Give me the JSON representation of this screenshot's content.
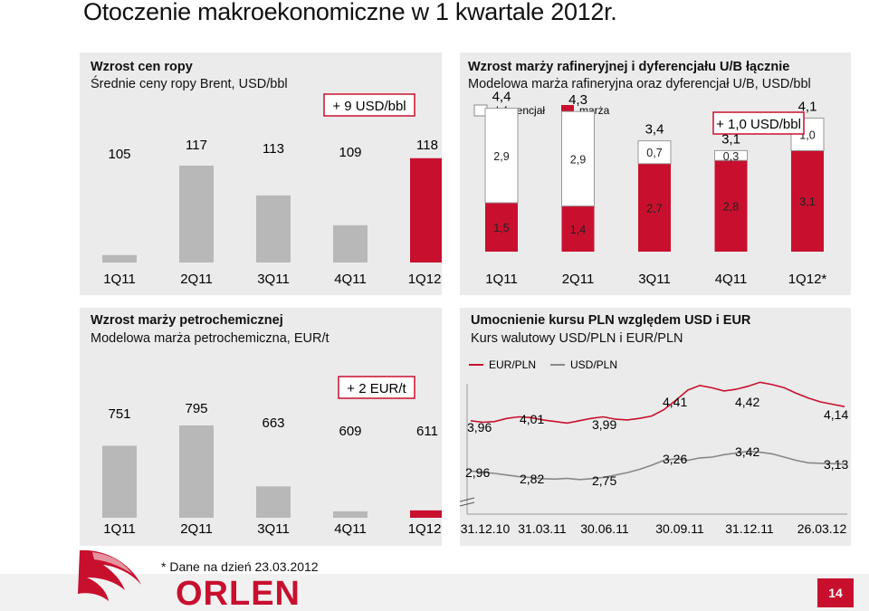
{
  "slide": {
    "title": "Otoczenie makroekonomiczne w 1 kwartale 2012r.",
    "footnote": "* Dane na dzień 23.03.2012",
    "logo_text": "ORLEN",
    "page_number": "14"
  },
  "chart_data": [
    {
      "id": "crude",
      "type": "bar",
      "title": "Wzrost cen ropy",
      "subtitle": "Średnie ceny ropy Brent, USD/bbl",
      "categories": [
        "1Q11",
        "2Q11",
        "3Q11",
        "4Q11",
        "1Q12*"
      ],
      "values": [
        105,
        117,
        113,
        109,
        118
      ],
      "callout": "+ 9 USD/bbl",
      "colors": [
        "#b8b8b8",
        "#b8b8b8",
        "#b8b8b8",
        "#b8b8b8",
        "#c8102e"
      ]
    },
    {
      "id": "refining",
      "type": "bar",
      "stacked": true,
      "title": "Wzrost marży rafineryjnej i dyferencjału U/B łącznie",
      "subtitle": "Modelowa marża rafineryjna oraz dyferencjał U/B, USD/bbl",
      "categories": [
        "1Q11",
        "2Q11",
        "3Q11",
        "4Q11",
        "1Q12*"
      ],
      "series": [
        {
          "name": "marża",
          "values": [
            1.5,
            1.4,
            2.7,
            2.8,
            3.1
          ],
          "color": "#c8102e"
        },
        {
          "name": "dyferencjał",
          "values": [
            2.9,
            2.9,
            0.7,
            0.3,
            1.0
          ],
          "color": "#ffffff"
        }
      ],
      "segment_labels": [
        [
          "1,5",
          "1,4",
          "2,7",
          "2,8",
          "3,1"
        ],
        [
          "2,9",
          "2,9",
          "0,7",
          "0,3",
          "1,0"
        ]
      ],
      "totals": [
        "4,4",
        "4,3",
        "3,4",
        "3,1",
        "4,1"
      ],
      "callout": "+ 1,0 USD/bbl"
    },
    {
      "id": "petchem",
      "type": "bar",
      "title": "Wzrost marży petrochemicznej",
      "subtitle": "Modelowa marża petrochemiczna, EUR/t",
      "categories": [
        "1Q11",
        "2Q11",
        "3Q11",
        "4Q11",
        "1Q12*"
      ],
      "values": [
        751,
        795,
        663,
        609,
        611
      ],
      "callout": "+ 2 EUR/t",
      "colors": [
        "#b8b8b8",
        "#b8b8b8",
        "#b8b8b8",
        "#b8b8b8",
        "#c8102e"
      ]
    },
    {
      "id": "fx",
      "type": "line",
      "title": "Umocnienie kursu PLN względem USD i EUR",
      "subtitle": "Kurs walutowy USD/PLN i EUR/PLN",
      "x_tick_labels": [
        "31.12.10",
        "31.03.11",
        "30.06.11",
        "30.09.11",
        "31.12.11",
        "26.03.12"
      ],
      "series": [
        {
          "name": "EUR/PLN",
          "color": "#c8102e",
          "values": [
            3.96,
            3.94,
            3.95,
            3.99,
            4.01,
            4.0,
            3.97,
            3.95,
            3.93,
            3.96,
            3.99,
            4.01,
            3.98,
            3.97,
            3.99,
            4.02,
            4.1,
            4.22,
            4.35,
            4.41,
            4.38,
            4.34,
            4.36,
            4.4,
            4.45,
            4.42,
            4.38,
            4.31,
            4.25,
            4.2,
            4.17,
            4.14
          ],
          "labels": [
            "3,96",
            "4,01",
            "3,99",
            "4,41",
            "4,42",
            "4,14"
          ]
        },
        {
          "name": "USD/PLN",
          "color": "#888888",
          "values": [
            2.96,
            2.93,
            2.9,
            2.86,
            2.82,
            2.8,
            2.77,
            2.76,
            2.78,
            2.75,
            2.77,
            2.8,
            2.86,
            2.92,
            3.0,
            3.1,
            3.22,
            3.26,
            3.22,
            3.28,
            3.3,
            3.36,
            3.4,
            3.44,
            3.42,
            3.38,
            3.3,
            3.22,
            3.16,
            3.15,
            3.14,
            3.13
          ],
          "labels": [
            "2,96",
            "2,82",
            "2,75",
            "3,26",
            "3,42",
            "3,13"
          ]
        }
      ]
    }
  ]
}
